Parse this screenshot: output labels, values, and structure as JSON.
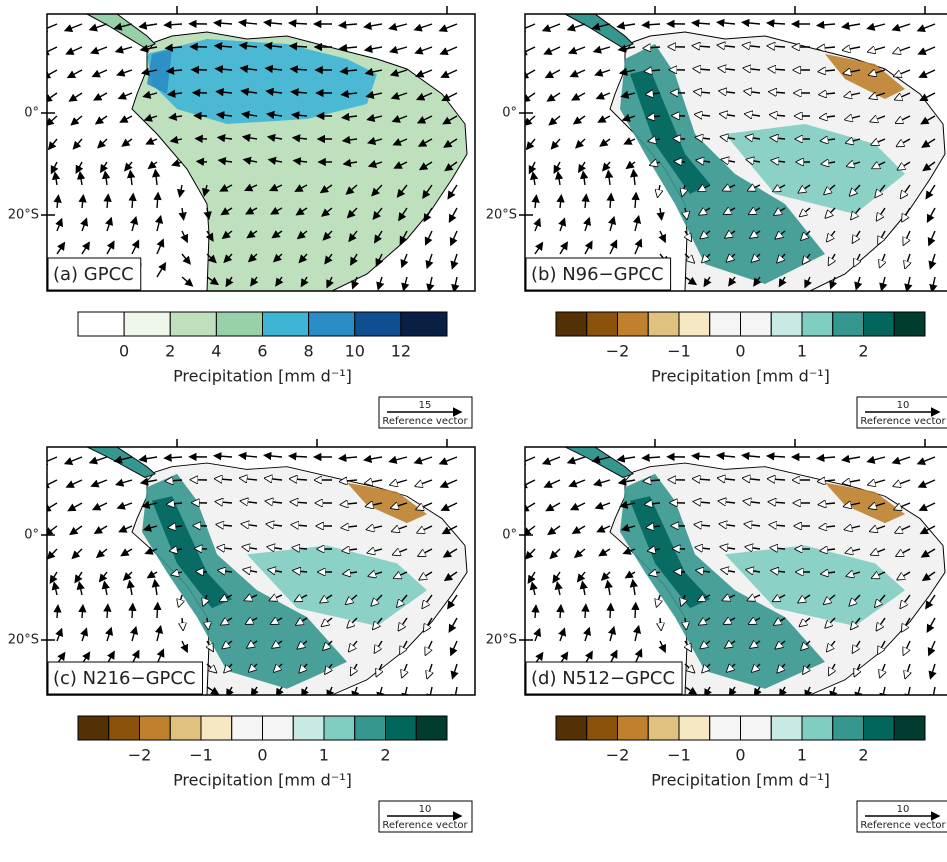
{
  "panels": [
    {
      "label": "(a) GPCC",
      "colorbar": {
        "colors": [
          "#ffffff",
          "#eef7ea",
          "#bfe0bd",
          "#98d1a8",
          "#3fb5d6",
          "#2b8dc4",
          "#0e4e91",
          "#0a1f44"
        ],
        "lim": [
          -2,
          14
        ],
        "ticks": [
          0,
          2,
          4,
          6,
          8,
          10,
          12
        ],
        "title": "Precipitation  [mm d⁻¹]"
      },
      "reference_vector": {
        "value": 15,
        "label": "Reference vector"
      },
      "lat_labels": [
        "0°",
        "20°S"
      ]
    },
    {
      "label": "(b) N96−GPCC",
      "colorbar": {
        "colors": [
          "#543005",
          "#8c510a",
          "#bf812d",
          "#dfc27d",
          "#f6e8c3",
          "#f5f5f5",
          "#f5f5f5",
          "#c7eae5",
          "#80cdc1",
          "#35978f",
          "#01665e",
          "#003c30"
        ],
        "lim": [
          -3,
          3
        ],
        "ticks": [
          {
            "value": -2,
            "label": "−2"
          },
          {
            "value": -1,
            "label": "−1"
          },
          0,
          1,
          2
        ],
        "title": "Precipitation  [mm d⁻¹]"
      },
      "reference_vector": {
        "value": 10,
        "label": "Reference vector"
      },
      "lat_labels": [
        "0°",
        "20°S"
      ]
    },
    {
      "label": "(c) N216−GPCC",
      "colorbar": {
        "colors": [
          "#543005",
          "#8c510a",
          "#bf812d",
          "#dfc27d",
          "#f6e8c3",
          "#f5f5f5",
          "#f5f5f5",
          "#c7eae5",
          "#80cdc1",
          "#35978f",
          "#01665e",
          "#003c30"
        ],
        "lim": [
          -3,
          3
        ],
        "ticks": [
          {
            "value": -2,
            "label": "−2"
          },
          {
            "value": -1,
            "label": "−1"
          },
          0,
          1,
          2
        ],
        "title": "Precipitation  [mm d⁻¹]"
      },
      "reference_vector": {
        "value": 10,
        "label": "Reference vector"
      },
      "lat_labels": [
        "0°",
        "20°S"
      ]
    },
    {
      "label": "(d) N512−GPCC",
      "colorbar": {
        "colors": [
          "#543005",
          "#8c510a",
          "#bf812d",
          "#dfc27d",
          "#f6e8c3",
          "#f5f5f5",
          "#f5f5f5",
          "#c7eae5",
          "#80cdc1",
          "#35978f",
          "#01665e",
          "#003c30"
        ],
        "lim": [
          -3,
          3
        ],
        "ticks": [
          {
            "value": -2,
            "label": "−2"
          },
          {
            "value": -1,
            "label": "−1"
          },
          0,
          1,
          2
        ],
        "title": "Precipitation  [mm d⁻¹]"
      },
      "reference_vector": {
        "value": 10,
        "label": "Reference vector"
      },
      "lat_labels": [
        "0°",
        "20°S"
      ]
    }
  ]
}
